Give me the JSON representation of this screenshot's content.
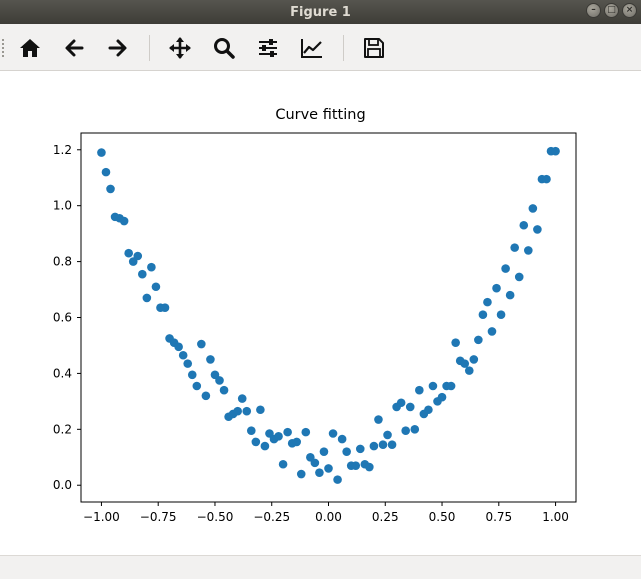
{
  "window": {
    "title": "Figure 1",
    "controls": [
      "minimize",
      "maximize",
      "close"
    ]
  },
  "toolbar": {
    "buttons": [
      {
        "name": "home",
        "icon": "home-icon"
      },
      {
        "name": "back",
        "icon": "arrow-left-icon"
      },
      {
        "name": "forward",
        "icon": "arrow-right-icon"
      },
      {
        "name": "pan",
        "icon": "move-icon"
      },
      {
        "name": "zoom",
        "icon": "magnifier-icon"
      },
      {
        "name": "configure-subplots",
        "icon": "sliders-icon"
      },
      {
        "name": "edit-axis",
        "icon": "line-chart-icon"
      },
      {
        "name": "save",
        "icon": "floppy-disk-icon"
      }
    ]
  },
  "chart_data": {
    "type": "scatter",
    "title": "Curve fitting",
    "xlabel": "",
    "ylabel": "",
    "xlim": [
      -1.09,
      1.09
    ],
    "ylim": [
      -0.06,
      1.26
    ],
    "xticks": [
      -1.0,
      -0.75,
      -0.5,
      -0.25,
      0.0,
      0.25,
      0.5,
      0.75,
      1.0
    ],
    "xtick_labels": [
      "−1.00",
      "−0.75",
      "−0.50",
      "−0.25",
      "0.00",
      "0.25",
      "0.50",
      "0.75",
      "1.00"
    ],
    "yticks": [
      0.0,
      0.2,
      0.4,
      0.6,
      0.8,
      1.0,
      1.2
    ],
    "ytick_labels": [
      "0.0",
      "0.2",
      "0.4",
      "0.6",
      "0.8",
      "1.0",
      "1.2"
    ],
    "grid": false,
    "color": "#1f77b4",
    "x": [
      -1.0,
      -0.98,
      -0.96,
      -0.94,
      -0.92,
      -0.9,
      -0.88,
      -0.86,
      -0.84,
      -0.82,
      -0.8,
      -0.78,
      -0.76,
      -0.74,
      -0.72,
      -0.7,
      -0.68,
      -0.66,
      -0.64,
      -0.62,
      -0.6,
      -0.58,
      -0.56,
      -0.54,
      -0.52,
      -0.5,
      -0.48,
      -0.46,
      -0.44,
      -0.42,
      -0.4,
      -0.38,
      -0.36,
      -0.34,
      -0.32,
      -0.3,
      -0.28,
      -0.26,
      -0.24,
      -0.22,
      -0.2,
      -0.18,
      -0.16,
      -0.14,
      -0.12,
      -0.1,
      -0.08,
      -0.06,
      -0.04,
      -0.02,
      0.0,
      0.02,
      0.04,
      0.06,
      0.08,
      0.1,
      0.12,
      0.14,
      0.16,
      0.18,
      0.2,
      0.22,
      0.24,
      0.26,
      0.28,
      0.3,
      0.32,
      0.34,
      0.36,
      0.38,
      0.4,
      0.42,
      0.44,
      0.46,
      0.48,
      0.5,
      0.52,
      0.54,
      0.56,
      0.58,
      0.6,
      0.62,
      0.64,
      0.66,
      0.68,
      0.7,
      0.72,
      0.74,
      0.76,
      0.78,
      0.8,
      0.82,
      0.84,
      0.86,
      0.88,
      0.9,
      0.92,
      0.94,
      0.96,
      0.98,
      1.0
    ],
    "y": [
      1.19,
      1.12,
      1.06,
      0.96,
      0.955,
      0.945,
      0.83,
      0.8,
      0.82,
      0.755,
      0.67,
      0.78,
      0.71,
      0.635,
      0.635,
      0.525,
      0.51,
      0.495,
      0.465,
      0.435,
      0.395,
      0.355,
      0.505,
      0.32,
      0.45,
      0.395,
      0.375,
      0.34,
      0.245,
      0.255,
      0.265,
      0.31,
      0.265,
      0.195,
      0.155,
      0.27,
      0.14,
      0.185,
      0.165,
      0.175,
      0.075,
      0.19,
      0.15,
      0.155,
      0.04,
      0.19,
      0.1,
      0.08,
      0.045,
      0.12,
      0.06,
      0.185,
      0.02,
      0.165,
      0.12,
      0.07,
      0.07,
      0.13,
      0.075,
      0.065,
      0.14,
      0.235,
      0.145,
      0.18,
      0.145,
      0.28,
      0.295,
      0.195,
      0.28,
      0.2,
      0.34,
      0.255,
      0.27,
      0.355,
      0.3,
      0.315,
      0.355,
      0.355,
      0.51,
      0.445,
      0.435,
      0.41,
      0.45,
      0.52,
      0.61,
      0.655,
      0.55,
      0.705,
      0.61,
      0.775,
      0.68,
      0.85,
      0.745,
      0.93,
      0.84,
      0.99,
      0.915,
      1.095,
      1.095,
      1.195,
      1.195
    ]
  }
}
